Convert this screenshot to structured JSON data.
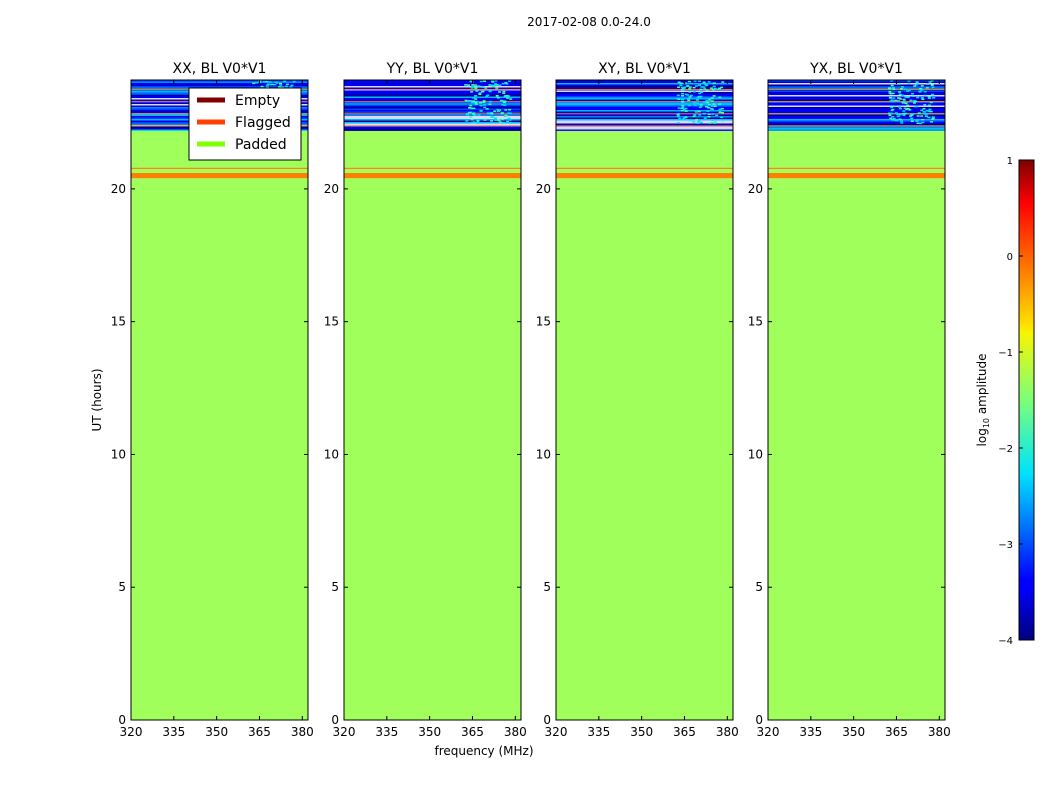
{
  "chart_data": {
    "type": "heatmap",
    "suptitle": "2017-02-08 0.0-24.0",
    "xlabel": "frequency (MHz)",
    "ylabel": "UT (hours)",
    "xlim": [
      320,
      382
    ],
    "ylim": [
      0,
      24.1
    ],
    "xticks": [
      320,
      335,
      350,
      365,
      380
    ],
    "yticks": [
      0,
      5,
      10,
      15,
      20
    ],
    "panels": [
      {
        "title": "XX, BL V0*V1",
        "has_legend": true
      },
      {
        "title": "YY, BL V0*V1",
        "has_legend": false
      },
      {
        "title": "XY, BL V0*V1",
        "has_legend": false
      },
      {
        "title": "YX, BL V0*V1",
        "has_legend": false
      }
    ],
    "legend": {
      "placement": "upper-center of first panel",
      "entries": [
        {
          "label": "Empty",
          "color": "#800000"
        },
        {
          "label": "Flagged",
          "color": "#ff4000"
        },
        {
          "label": "Padded",
          "color": "#80ff00"
        }
      ]
    },
    "regions": [
      {
        "state": "Padded",
        "ut_start": 0.0,
        "ut_end": 20.4,
        "color": "#a0ff5a"
      },
      {
        "state": "Flagged",
        "ut_start": 20.4,
        "ut_end": 20.6,
        "color": "#ff7f00"
      },
      {
        "state": "Padded",
        "ut_start": 20.6,
        "ut_end": 20.75,
        "color": "#a0ff5a"
      },
      {
        "state": "Flagged",
        "ut_start": 20.75,
        "ut_end": 20.8,
        "color": "#ff7f00"
      },
      {
        "state": "Padded",
        "ut_start": 20.8,
        "ut_end": 22.2,
        "color": "#a0ff5a"
      }
    ],
    "data_region": {
      "ut_start": 22.2,
      "ut_end": 24.1,
      "description_values_log10": [
        -4,
        -1.5
      ]
    },
    "colorbar": {
      "label": "log10 amplitude",
      "label_base": "log",
      "label_sub": "10",
      "label_rest": " amplitude",
      "range": [
        -4,
        1
      ],
      "ticks": [
        1,
        0,
        -1,
        -2,
        -3,
        -4
      ]
    },
    "colors": {
      "padded": "#a0ff5a",
      "flagged": "#ff7f00",
      "background": "#ffffff"
    }
  }
}
